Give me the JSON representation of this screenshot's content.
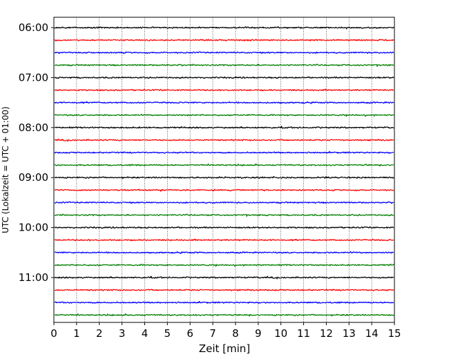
{
  "chart_data": {
    "type": "line",
    "title": "",
    "xlabel": "Zeit  [min]",
    "ylabel": "UTC (Lokalzeit = UTC + 01:00)",
    "xlim": [
      0,
      15
    ],
    "x_ticks": [
      0,
      1,
      2,
      3,
      4,
      5,
      6,
      7,
      8,
      9,
      10,
      11,
      12,
      13,
      14,
      15
    ],
    "y_tick_labels": [
      "06:00",
      "07:00",
      "08:00",
      "09:00",
      "10:00",
      "11:00"
    ],
    "trace_start_times": [
      "06:00",
      "06:15",
      "06:30",
      "06:45",
      "07:00",
      "07:15",
      "07:30",
      "07:45",
      "08:00",
      "08:15",
      "08:30",
      "08:45",
      "09:00",
      "09:15",
      "09:30",
      "09:45",
      "10:00",
      "10:15",
      "10:30",
      "10:45",
      "11:00",
      "11:15",
      "11:30",
      "11:45"
    ],
    "trace_colors": [
      "#000000",
      "#ff0000",
      "#0000ff",
      "#008000"
    ],
    "vertical_grid": true,
    "vertical_grid_style": "dotted"
  }
}
